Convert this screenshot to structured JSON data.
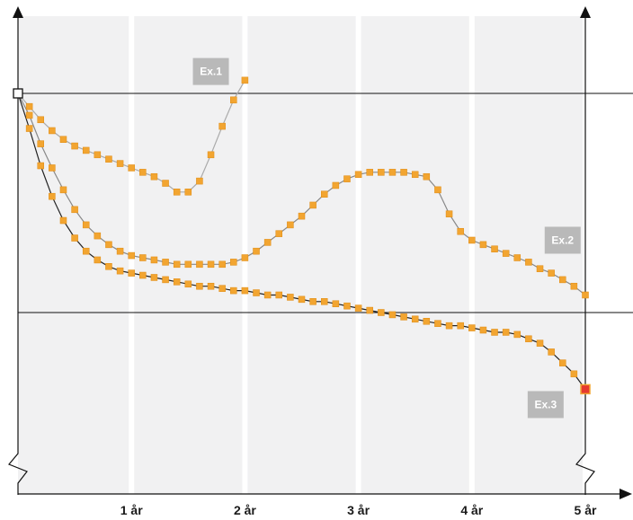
{
  "chart_data": {
    "type": "line",
    "x_unit_label": "år",
    "xlim": [
      -1.0,
      5.4
    ],
    "ylim": [
      -0.55,
      1.2
    ],
    "x_ticks": [
      {
        "value": 1,
        "label": "1 år"
      },
      {
        "value": 2,
        "label": "2 år"
      },
      {
        "value": 3,
        "label": "3 år"
      },
      {
        "value": 4,
        "label": "4 år"
      },
      {
        "value": 5,
        "label": "5 år"
      }
    ],
    "reference_lines_y": [
      1.0,
      0.0
    ],
    "band_edges_x": [
      0,
      1,
      2,
      3,
      4,
      5
    ],
    "grid": false,
    "start_point": {
      "x": 0,
      "y": 1.0
    },
    "end_marker": {
      "x": 5,
      "y": -0.35
    },
    "colors": {
      "marker": "#f2a531",
      "marker_edge": "#e08a10",
      "end_marker": "#e63a2e",
      "band": "#f1f1f2",
      "axis": "#111111",
      "ex1_line": "#aaaaaa",
      "ex2_line": "#888888",
      "ex3_line": "#222222",
      "label_box": "#b9b9b9"
    },
    "series": [
      {
        "name": "Ex.1",
        "label_at": {
          "x": 1.7,
          "y": 1.1
        },
        "x": [
          0,
          0.1,
          0.2,
          0.3,
          0.4,
          0.5,
          0.6,
          0.7,
          0.8,
          0.9,
          1.0,
          1.1,
          1.2,
          1.3,
          1.4,
          1.5,
          1.6,
          1.7,
          1.8,
          1.9,
          2.0
        ],
        "y": [
          1.0,
          0.94,
          0.88,
          0.83,
          0.79,
          0.76,
          0.74,
          0.72,
          0.7,
          0.68,
          0.66,
          0.64,
          0.62,
          0.59,
          0.55,
          0.55,
          0.6,
          0.72,
          0.85,
          0.97,
          1.06
        ]
      },
      {
        "name": "Ex.2",
        "label_at": {
          "x": 4.8,
          "y": 0.33
        },
        "x": [
          0,
          0.1,
          0.2,
          0.3,
          0.4,
          0.5,
          0.6,
          0.7,
          0.8,
          0.9,
          1.0,
          1.1,
          1.2,
          1.3,
          1.4,
          1.5,
          1.6,
          1.7,
          1.8,
          1.9,
          2.0,
          2.1,
          2.2,
          2.3,
          2.4,
          2.5,
          2.6,
          2.7,
          2.8,
          2.9,
          3.0,
          3.1,
          3.2,
          3.3,
          3.4,
          3.5,
          3.6,
          3.7,
          3.8,
          3.9,
          4.0,
          4.1,
          4.2,
          4.3,
          4.4,
          4.5,
          4.6,
          4.7,
          4.8,
          4.9,
          5.0
        ],
        "y": [
          1.0,
          0.9,
          0.77,
          0.66,
          0.56,
          0.47,
          0.4,
          0.35,
          0.31,
          0.28,
          0.26,
          0.25,
          0.24,
          0.23,
          0.22,
          0.22,
          0.22,
          0.22,
          0.22,
          0.23,
          0.25,
          0.28,
          0.32,
          0.36,
          0.4,
          0.44,
          0.49,
          0.54,
          0.58,
          0.61,
          0.63,
          0.64,
          0.64,
          0.64,
          0.64,
          0.63,
          0.62,
          0.56,
          0.45,
          0.37,
          0.33,
          0.31,
          0.29,
          0.27,
          0.25,
          0.23,
          0.2,
          0.18,
          0.15,
          0.12,
          0.08
        ]
      },
      {
        "name": "Ex.3",
        "label_at": {
          "x": 4.65,
          "y": -0.42
        },
        "x": [
          0,
          0.1,
          0.2,
          0.3,
          0.4,
          0.5,
          0.6,
          0.7,
          0.8,
          0.9,
          1.0,
          1.1,
          1.2,
          1.3,
          1.4,
          1.5,
          1.6,
          1.7,
          1.8,
          1.9,
          2.0,
          2.1,
          2.2,
          2.3,
          2.4,
          2.5,
          2.6,
          2.7,
          2.8,
          2.9,
          3.0,
          3.1,
          3.2,
          3.3,
          3.4,
          3.5,
          3.6,
          3.7,
          3.8,
          3.9,
          4.0,
          4.1,
          4.2,
          4.3,
          4.4,
          4.5,
          4.6,
          4.7,
          4.8,
          4.9,
          5.0
        ],
        "y": [
          1.0,
          0.84,
          0.67,
          0.53,
          0.42,
          0.34,
          0.28,
          0.24,
          0.21,
          0.19,
          0.18,
          0.17,
          0.16,
          0.15,
          0.14,
          0.13,
          0.12,
          0.12,
          0.11,
          0.1,
          0.1,
          0.09,
          0.08,
          0.08,
          0.07,
          0.06,
          0.05,
          0.05,
          0.04,
          0.03,
          0.02,
          0.01,
          0.0,
          -0.01,
          -0.02,
          -0.03,
          -0.04,
          -0.05,
          -0.06,
          -0.06,
          -0.07,
          -0.08,
          -0.09,
          -0.09,
          -0.1,
          -0.12,
          -0.14,
          -0.18,
          -0.23,
          -0.28,
          -0.35
        ]
      }
    ]
  }
}
